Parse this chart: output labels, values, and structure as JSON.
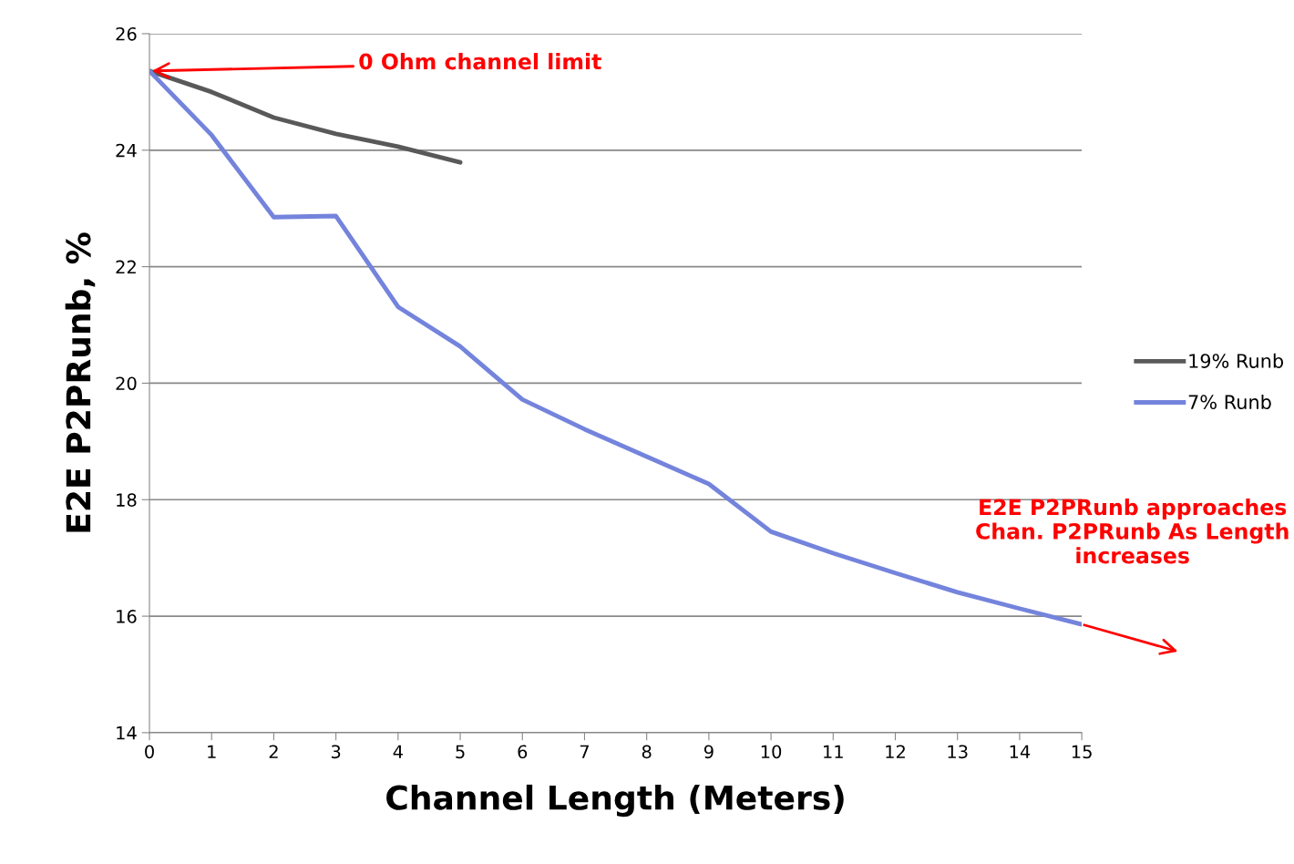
{
  "chart_data": {
    "type": "line",
    "xlabel": "Channel Length (Meters)",
    "ylabel": "E2E P2PRunb, %",
    "x": [
      0,
      1,
      2,
      3,
      4,
      5,
      6,
      7,
      8,
      9,
      10,
      11,
      12,
      13,
      14,
      15
    ],
    "series": [
      {
        "name": "19% Runb",
        "color": "#595959",
        "values": [
          25.36,
          25.0,
          24.56,
          24.28,
          24.06,
          23.79,
          null,
          null,
          null,
          null,
          null,
          null,
          null,
          null,
          null,
          null
        ]
      },
      {
        "name": "7% Runb",
        "color": "#7484dc",
        "values": [
          25.36,
          24.26,
          22.85,
          22.87,
          21.31,
          20.63,
          19.72,
          19.21,
          18.74,
          18.27,
          17.45,
          17.08,
          16.74,
          16.41,
          16.13,
          15.86
        ]
      }
    ],
    "xlim": [
      0,
      15
    ],
    "xticks": [
      0,
      1,
      2,
      3,
      4,
      5,
      6,
      7,
      8,
      9,
      10,
      11,
      12,
      13,
      14,
      15
    ],
    "ylim": [
      14,
      26
    ],
    "yticks": [
      14,
      16,
      18,
      20,
      22,
      24,
      26
    ],
    "grid": "y",
    "legend": "right",
    "marker": "none",
    "line_style": "solid",
    "annotations": [
      {
        "text": "0 Ohm channel limit",
        "x": 0,
        "y": 25.36
      },
      {
        "text": "E2E P2PRunb approaches\nChan. P2PRunb As Length\nincreases",
        "x": 15,
        "y": 15.86
      }
    ]
  }
}
